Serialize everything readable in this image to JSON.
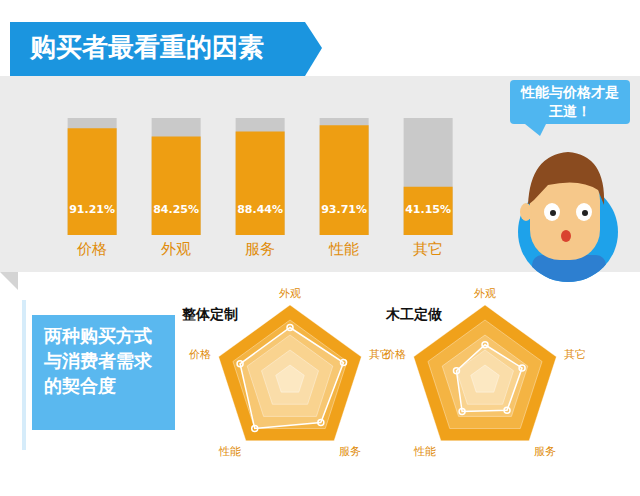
{
  "speech": "性能与价格才是王道！",
  "section_label": "两种购买方式与消费者需求的契合度",
  "chart_data": [
    {
      "type": "bar",
      "title": "购买者最看重的因素",
      "categories": [
        "价格",
        "外观",
        "服务",
        "性能",
        "其它"
      ],
      "values": [
        91.21,
        84.25,
        88.44,
        93.71,
        41.15
      ],
      "value_labels": [
        "91.21%",
        "84.25%",
        "88.44%",
        "93.71%",
        "41.15%"
      ],
      "color": "#ee9e12",
      "ylim": [
        0,
        100
      ],
      "data_labels": true,
      "tick_labels": "x"
    },
    {
      "type": "radar",
      "title": "整体定制",
      "categories": [
        "外观",
        "其它",
        "服务",
        "性能",
        "价格"
      ],
      "values": [
        70,
        75,
        70,
        80,
        70
      ],
      "color": "#ffffff",
      "ylim": [
        0,
        100
      ],
      "yticks": [
        20,
        40,
        60,
        80,
        100
      ],
      "tick_labels": "x"
    },
    {
      "type": "radar",
      "title": "木工定做",
      "categories": [
        "外观",
        "其它",
        "服务",
        "性能",
        "价格"
      ],
      "values": [
        47,
        52,
        50,
        52,
        40
      ],
      "color": "#ffffff",
      "ylim": [
        0,
        100
      ],
      "yticks": [
        20,
        40,
        60,
        80,
        100
      ],
      "tick_labels": "x"
    }
  ]
}
